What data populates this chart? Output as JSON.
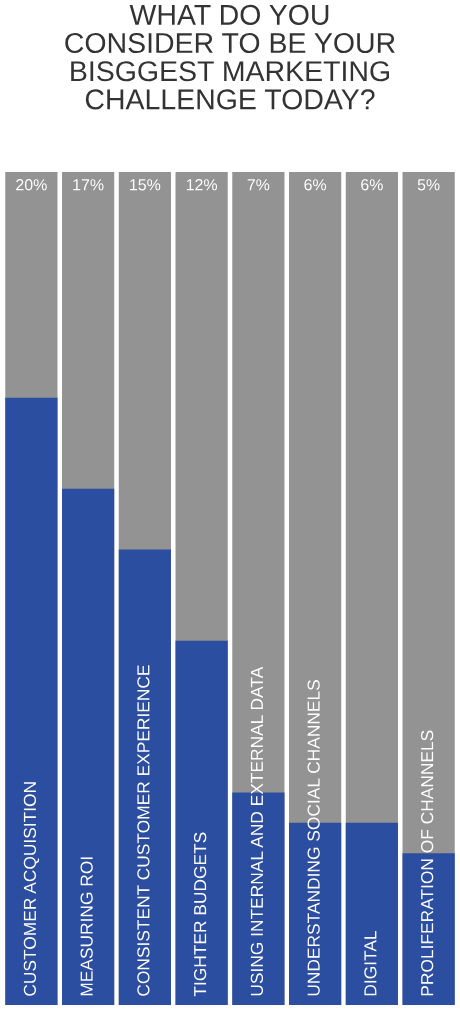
{
  "chart_data": {
    "type": "bar",
    "title": "WHAT DO YOU\nCONSIDER TO BE YOUR\nBISGGEST MARKETING\nCHALLENGE TODAY?",
    "categories": [
      "CUSTOMER ACQUISITION",
      "MEASURING ROI",
      "CONSISTENT CUSTOMER EXPERIENCE",
      "TIGHTER BUDGETS",
      "USING INTERNAL AND EXTERNAL DATA",
      "UNDERSTANDING SOCIAL CHANNELS",
      "DIGITAL",
      "PROLIFERATION OF CHANNELS"
    ],
    "values": [
      20,
      17,
      15,
      12,
      7,
      6,
      6,
      5
    ],
    "value_labels": [
      "20%",
      "17%",
      "15%",
      "12%",
      "7%",
      "6%",
      "6%",
      "5%"
    ],
    "color": "#2c4ea0",
    "legend": false
  }
}
